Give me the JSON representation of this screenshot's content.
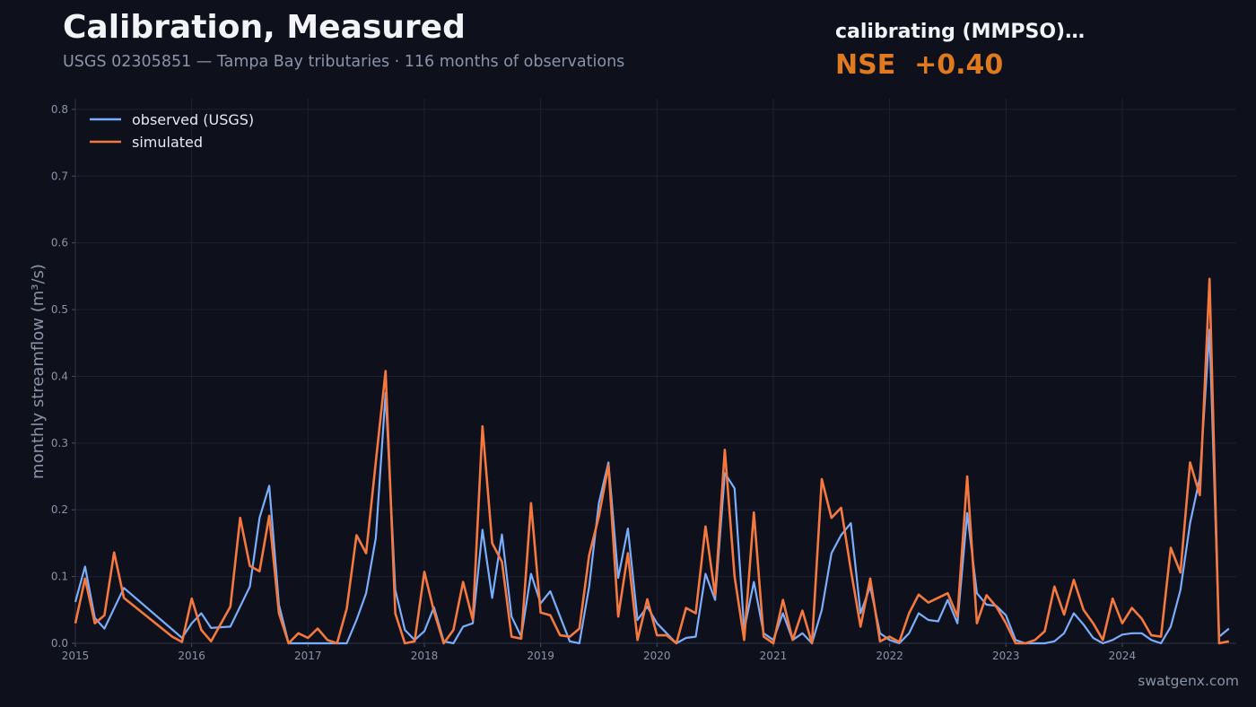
{
  "header": {
    "title": "Calibration, Measured",
    "subtitle": "USGS 02305851 — Tampa Bay tributaries · 116 months of observations"
  },
  "status": {
    "label": "calibrating (MMPSO)…",
    "metric": "NSE  +0.40"
  },
  "watermark": "swatgenx.com",
  "colors": {
    "background": "#0e111c",
    "observed": "#7aaefc",
    "simulated": "#f5793f",
    "metric": "#e07a1f"
  },
  "chart_data": {
    "type": "line",
    "title": "",
    "xlabel": "",
    "ylabel": "monthly streamflow  (m³/s)",
    "xlim": [
      2015.0,
      2024.98
    ],
    "ylim": [
      0,
      0.816
    ],
    "x_ticks": [
      "2015",
      "2016",
      "2017",
      "2018",
      "2019",
      "2020",
      "2021",
      "2022",
      "2023",
      "2024"
    ],
    "y_ticks": [
      "0.0",
      "0.1",
      "0.2",
      "0.3",
      "0.4",
      "0.5",
      "0.6",
      "0.7",
      "0.8"
    ],
    "grid": true,
    "legend_position": "top-left",
    "series": [
      {
        "name": "observed (USGS)",
        "points": [
          [
            2015.0,
            0.062
          ],
          [
            2015.083,
            0.115
          ],
          [
            2015.167,
            0.038
          ],
          [
            2015.25,
            0.022
          ],
          [
            2015.417,
            0.083
          ],
          [
            2015.917,
            0.008
          ],
          [
            2016.0,
            0.03
          ],
          [
            2016.083,
            0.045
          ],
          [
            2016.167,
            0.023
          ],
          [
            2016.333,
            0.025
          ],
          [
            2016.5,
            0.085
          ],
          [
            2016.583,
            0.188
          ],
          [
            2016.667,
            0.236
          ],
          [
            2016.75,
            0.058
          ],
          [
            2016.833,
            0.0
          ],
          [
            2017.333,
            0.0
          ],
          [
            2017.417,
            0.035
          ],
          [
            2017.5,
            0.075
          ],
          [
            2017.583,
            0.158
          ],
          [
            2017.667,
            0.375
          ],
          [
            2017.75,
            0.08
          ],
          [
            2017.833,
            0.02
          ],
          [
            2017.917,
            0.005
          ],
          [
            2018.0,
            0.018
          ],
          [
            2018.083,
            0.054
          ],
          [
            2018.167,
            0.003
          ],
          [
            2018.25,
            0.0
          ],
          [
            2018.333,
            0.025
          ],
          [
            2018.417,
            0.03
          ],
          [
            2018.5,
            0.17
          ],
          [
            2018.583,
            0.068
          ],
          [
            2018.667,
            0.163
          ],
          [
            2018.75,
            0.04
          ],
          [
            2018.833,
            0.01
          ],
          [
            2018.917,
            0.104
          ],
          [
            2019.0,
            0.06
          ],
          [
            2019.083,
            0.078
          ],
          [
            2019.167,
            0.04
          ],
          [
            2019.25,
            0.003
          ],
          [
            2019.333,
            0.0
          ],
          [
            2019.417,
            0.085
          ],
          [
            2019.5,
            0.21
          ],
          [
            2019.583,
            0.271
          ],
          [
            2019.667,
            0.098
          ],
          [
            2019.75,
            0.172
          ],
          [
            2019.833,
            0.035
          ],
          [
            2019.917,
            0.055
          ],
          [
            2020.0,
            0.03
          ],
          [
            2020.083,
            0.015
          ],
          [
            2020.167,
            0.0
          ],
          [
            2020.25,
            0.008
          ],
          [
            2020.333,
            0.01
          ],
          [
            2020.417,
            0.104
          ],
          [
            2020.5,
            0.065
          ],
          [
            2020.583,
            0.255
          ],
          [
            2020.667,
            0.232
          ],
          [
            2020.75,
            0.02
          ],
          [
            2020.833,
            0.092
          ],
          [
            2020.917,
            0.015
          ],
          [
            2021.0,
            0.005
          ],
          [
            2021.083,
            0.045
          ],
          [
            2021.167,
            0.005
          ],
          [
            2021.25,
            0.015
          ],
          [
            2021.333,
            0.0
          ],
          [
            2021.417,
            0.05
          ],
          [
            2021.5,
            0.135
          ],
          [
            2021.583,
            0.162
          ],
          [
            2021.667,
            0.18
          ],
          [
            2021.75,
            0.045
          ],
          [
            2021.833,
            0.085
          ],
          [
            2021.917,
            0.015
          ],
          [
            2022.0,
            0.005
          ],
          [
            2022.083,
            0.0
          ],
          [
            2022.167,
            0.015
          ],
          [
            2022.25,
            0.045
          ],
          [
            2022.333,
            0.035
          ],
          [
            2022.417,
            0.033
          ],
          [
            2022.5,
            0.065
          ],
          [
            2022.583,
            0.03
          ],
          [
            2022.667,
            0.195
          ],
          [
            2022.75,
            0.075
          ],
          [
            2022.833,
            0.058
          ],
          [
            2022.917,
            0.056
          ],
          [
            2023.0,
            0.042
          ],
          [
            2023.083,
            0.005
          ],
          [
            2023.167,
            0.0
          ],
          [
            2023.333,
            0.0
          ],
          [
            2023.417,
            0.003
          ],
          [
            2023.5,
            0.015
          ],
          [
            2023.583,
            0.045
          ],
          [
            2023.667,
            0.028
          ],
          [
            2023.75,
            0.008
          ],
          [
            2023.833,
            0.0
          ],
          [
            2023.917,
            0.005
          ],
          [
            2024.0,
            0.013
          ],
          [
            2024.083,
            0.015
          ],
          [
            2024.167,
            0.015
          ],
          [
            2024.25,
            0.005
          ],
          [
            2024.333,
            0.0
          ],
          [
            2024.417,
            0.025
          ],
          [
            2024.5,
            0.08
          ],
          [
            2024.583,
            0.18
          ],
          [
            2024.667,
            0.248
          ],
          [
            2024.75,
            0.47
          ],
          [
            2024.833,
            0.01
          ],
          [
            2024.917,
            0.022
          ]
        ]
      },
      {
        "name": "simulated",
        "points": [
          [
            2015.0,
            0.03
          ],
          [
            2015.083,
            0.097
          ],
          [
            2015.167,
            0.03
          ],
          [
            2015.25,
            0.042
          ],
          [
            2015.333,
            0.136
          ],
          [
            2015.417,
            0.068
          ],
          [
            2015.833,
            0.01
          ],
          [
            2015.917,
            0.002
          ],
          [
            2016.0,
            0.067
          ],
          [
            2016.083,
            0.02
          ],
          [
            2016.167,
            0.003
          ],
          [
            2016.333,
            0.055
          ],
          [
            2016.417,
            0.188
          ],
          [
            2016.5,
            0.116
          ],
          [
            2016.583,
            0.108
          ],
          [
            2016.667,
            0.191
          ],
          [
            2016.75,
            0.045
          ],
          [
            2016.833,
            0.0
          ],
          [
            2016.917,
            0.015
          ],
          [
            2017.0,
            0.008
          ],
          [
            2017.083,
            0.022
          ],
          [
            2017.167,
            0.005
          ],
          [
            2017.25,
            0.0
          ],
          [
            2017.333,
            0.052
          ],
          [
            2017.417,
            0.162
          ],
          [
            2017.5,
            0.135
          ],
          [
            2017.583,
            0.272
          ],
          [
            2017.667,
            0.408
          ],
          [
            2017.75,
            0.045
          ],
          [
            2017.833,
            0.0
          ],
          [
            2017.917,
            0.003
          ],
          [
            2018.0,
            0.107
          ],
          [
            2018.083,
            0.048
          ],
          [
            2018.167,
            0.0
          ],
          [
            2018.25,
            0.02
          ],
          [
            2018.333,
            0.092
          ],
          [
            2018.417,
            0.035
          ],
          [
            2018.5,
            0.325
          ],
          [
            2018.583,
            0.15
          ],
          [
            2018.667,
            0.122
          ],
          [
            2018.75,
            0.01
          ],
          [
            2018.833,
            0.007
          ],
          [
            2018.917,
            0.21
          ],
          [
            2019.0,
            0.046
          ],
          [
            2019.083,
            0.042
          ],
          [
            2019.167,
            0.012
          ],
          [
            2019.25,
            0.01
          ],
          [
            2019.333,
            0.022
          ],
          [
            2019.417,
            0.132
          ],
          [
            2019.5,
            0.19
          ],
          [
            2019.583,
            0.267
          ],
          [
            2019.667,
            0.04
          ],
          [
            2019.75,
            0.135
          ],
          [
            2019.833,
            0.005
          ],
          [
            2019.917,
            0.066
          ],
          [
            2020.0,
            0.012
          ],
          [
            2020.083,
            0.012
          ],
          [
            2020.167,
            0.0
          ],
          [
            2020.25,
            0.053
          ],
          [
            2020.333,
            0.045
          ],
          [
            2020.417,
            0.175
          ],
          [
            2020.5,
            0.072
          ],
          [
            2020.583,
            0.29
          ],
          [
            2020.667,
            0.1
          ],
          [
            2020.75,
            0.005
          ],
          [
            2020.833,
            0.196
          ],
          [
            2020.917,
            0.01
          ],
          [
            2021.0,
            0.0
          ],
          [
            2021.083,
            0.065
          ],
          [
            2021.167,
            0.005
          ],
          [
            2021.25,
            0.049
          ],
          [
            2021.333,
            0.0
          ],
          [
            2021.417,
            0.246
          ],
          [
            2021.5,
            0.188
          ],
          [
            2021.583,
            0.203
          ],
          [
            2021.667,
            0.11
          ],
          [
            2021.75,
            0.025
          ],
          [
            2021.833,
            0.097
          ],
          [
            2021.917,
            0.003
          ],
          [
            2022.0,
            0.01
          ],
          [
            2022.083,
            0.002
          ],
          [
            2022.167,
            0.045
          ],
          [
            2022.25,
            0.073
          ],
          [
            2022.333,
            0.061
          ],
          [
            2022.5,
            0.075
          ],
          [
            2022.583,
            0.04
          ],
          [
            2022.667,
            0.25
          ],
          [
            2022.75,
            0.03
          ],
          [
            2022.833,
            0.072
          ],
          [
            2022.917,
            0.055
          ],
          [
            2023.0,
            0.03
          ],
          [
            2023.083,
            0.0
          ],
          [
            2023.167,
            0.0
          ],
          [
            2023.25,
            0.005
          ],
          [
            2023.333,
            0.018
          ],
          [
            2023.417,
            0.085
          ],
          [
            2023.5,
            0.043
          ],
          [
            2023.583,
            0.095
          ],
          [
            2023.667,
            0.05
          ],
          [
            2023.75,
            0.03
          ],
          [
            2023.833,
            0.005
          ],
          [
            2023.917,
            0.067
          ],
          [
            2024.0,
            0.03
          ],
          [
            2024.083,
            0.053
          ],
          [
            2024.167,
            0.037
          ],
          [
            2024.25,
            0.012
          ],
          [
            2024.333,
            0.01
          ],
          [
            2024.417,
            0.143
          ],
          [
            2024.5,
            0.106
          ],
          [
            2024.583,
            0.271
          ],
          [
            2024.667,
            0.222
          ],
          [
            2024.75,
            0.546
          ],
          [
            2024.833,
            0.0
          ],
          [
            2024.917,
            0.003
          ]
        ]
      }
    ]
  }
}
